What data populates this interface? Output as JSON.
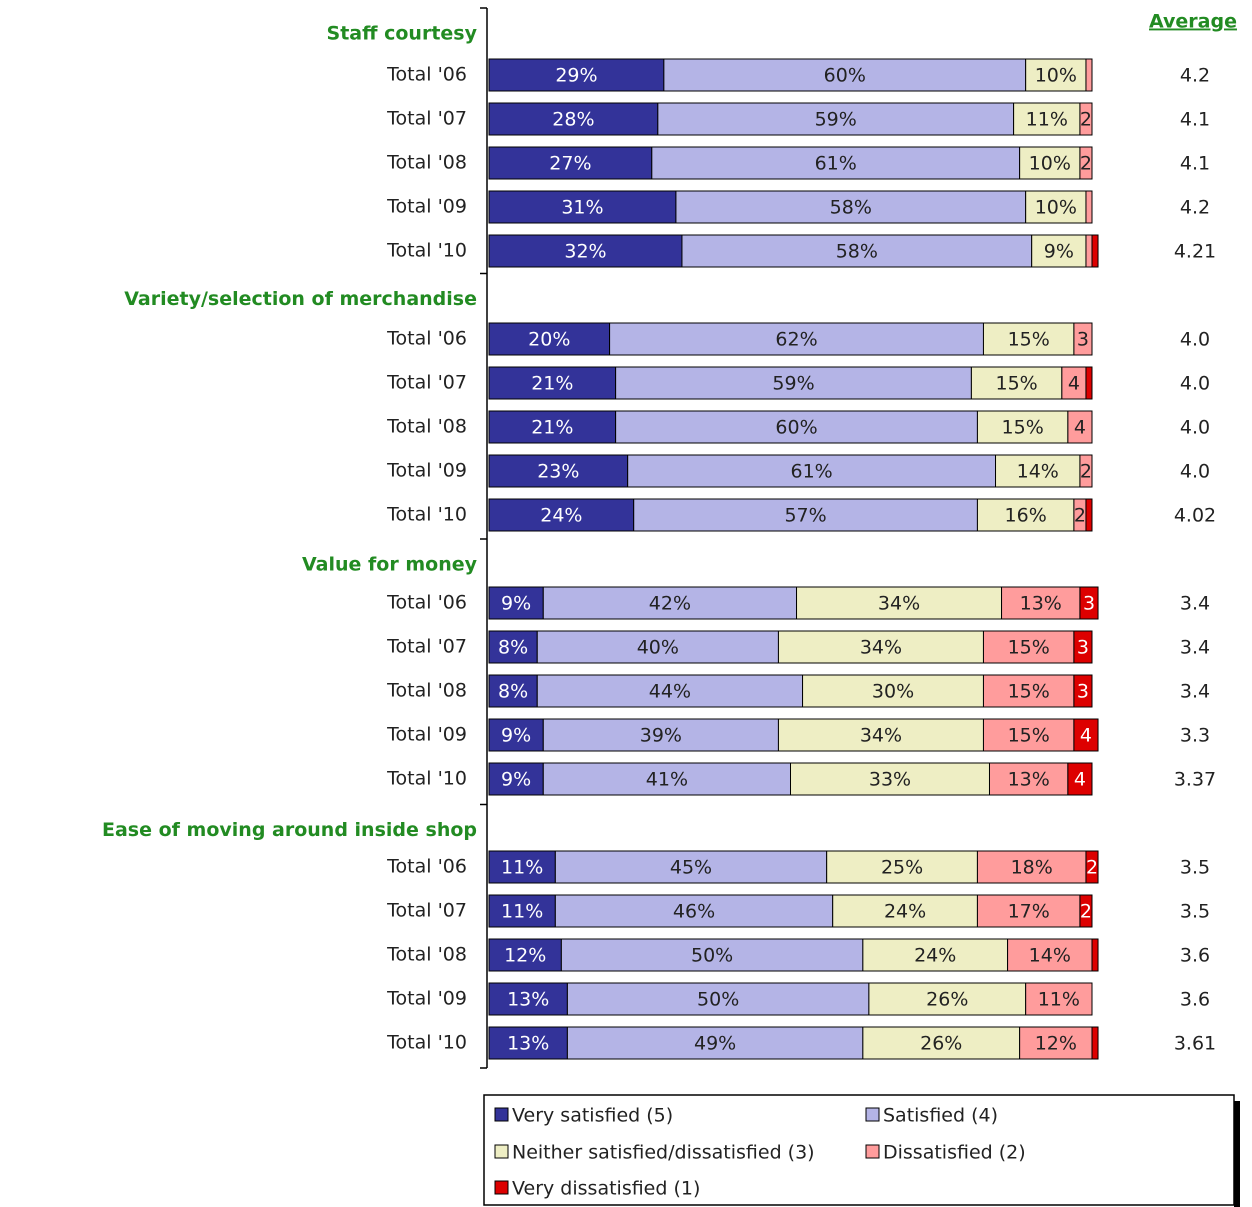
{
  "chart_data": {
    "type": "stacked_bar_horizontal",
    "groups": [
      {
        "title": "Staff courtesy",
        "categories": [
          "Total '06",
          "Total '07",
          "Total '08",
          "Total '09",
          "Total '10"
        ]
      },
      {
        "title": "Variety/selection of merchandise",
        "categories": [
          "Total '06",
          "Total '07",
          "Total '08",
          "Total '09",
          "Total '10"
        ]
      },
      {
        "title": "Value for money",
        "categories": [
          "Total '06",
          "Total '07",
          "Total '08",
          "Total '09",
          "Total '10"
        ]
      },
      {
        "title": "Ease of moving around inside shop",
        "categories": [
          "Total '06",
          "Total '07",
          "Total '08",
          "Total '09",
          "Total '10"
        ]
      }
    ],
    "xlim": [
      0,
      100
    ],
    "series": [
      {
        "name": "Very satisfied (5)",
        "color": "#333399",
        "text_color": "#ffffff",
        "values": [
          29,
          28,
          27,
          31,
          32,
          20,
          21,
          21,
          23,
          24,
          9,
          8,
          8,
          9,
          9,
          11,
          11,
          12,
          13,
          13
        ],
        "value_labels": [
          "29%",
          "28%",
          "27%",
          "31%",
          "32%",
          "20%",
          "21%",
          "21%",
          "23%",
          "24%",
          "9%",
          "8%",
          "8%",
          "9%",
          "9%",
          "11%",
          "11%",
          "12%",
          "13%",
          "13%"
        ]
      },
      {
        "name": "Satisfied (4)",
        "color": "#b4b4e6",
        "text_color": "#222222",
        "values": [
          60,
          59,
          61,
          58,
          58,
          62,
          59,
          60,
          61,
          57,
          42,
          40,
          44,
          39,
          41,
          45,
          46,
          50,
          50,
          49
        ],
        "value_labels": [
          "60%",
          "59%",
          "61%",
          "58%",
          "58%",
          "62%",
          "59%",
          "60%",
          "61%",
          "57%",
          "42%",
          "40%",
          "44%",
          "39%",
          "41%",
          "45%",
          "46%",
          "50%",
          "50%",
          "49%"
        ]
      },
      {
        "name": "Neither satisfied/dissatisfied (3)",
        "color": "#eeeec4",
        "text_color": "#222222",
        "values": [
          10,
          11,
          10,
          10,
          9,
          15,
          15,
          15,
          14,
          16,
          34,
          34,
          30,
          34,
          33,
          25,
          24,
          24,
          26,
          26
        ],
        "value_labels": [
          "10%",
          "11%",
          "10%",
          "10%",
          "9%",
          "15%",
          "15%",
          "15%",
          "14%",
          "16%",
          "34%",
          "34%",
          "30%",
          "34%",
          "33%",
          "25%",
          "24%",
          "24%",
          "26%",
          "26%"
        ]
      },
      {
        "name": "Dissatisfied (2)",
        "color": "#ff9c9c",
        "text_color": "#222222",
        "values": [
          1,
          2,
          2,
          1,
          1,
          3,
          4,
          4,
          2,
          2,
          13,
          15,
          15,
          15,
          13,
          18,
          17,
          14,
          11,
          12
        ],
        "value_labels": [
          null,
          "2",
          "2",
          null,
          null,
          "3",
          "4",
          "4",
          "2",
          "2",
          "13%",
          "15%",
          "15%",
          "15%",
          "13%",
          "18%",
          "17%",
          "14%",
          "11%",
          "12%"
        ]
      },
      {
        "name": "Very dissatisfied (1)",
        "color": "#dd0000",
        "text_color": "#ffffff",
        "values": [
          0,
          0,
          0,
          0,
          1,
          0,
          1,
          0,
          0,
          1,
          3,
          3,
          3,
          4,
          4,
          2,
          2,
          1,
          0,
          1
        ],
        "value_labels": [
          null,
          null,
          null,
          null,
          null,
          null,
          null,
          null,
          null,
          null,
          "3",
          "3",
          "3",
          "4",
          "4",
          "2",
          "2",
          null,
          null,
          null
        ]
      }
    ],
    "averages": {
      "title": "Average",
      "values": [
        4.2,
        4.1,
        4.1,
        4.2,
        4.21,
        4.0,
        4.0,
        4.0,
        4.0,
        4.02,
        3.4,
        3.4,
        3.4,
        3.3,
        3.37,
        3.5,
        3.5,
        3.6,
        3.6,
        3.61
      ],
      "value_labels": [
        "4.2",
        "4.1",
        "4.1",
        "4.2",
        "4.21",
        "4.0",
        "4.0",
        "4.0",
        "4.0",
        "4.02",
        "3.4",
        "3.4",
        "3.4",
        "3.3",
        "3.37",
        "3.5",
        "3.5",
        "3.6",
        "3.6",
        "3.61"
      ]
    }
  }
}
